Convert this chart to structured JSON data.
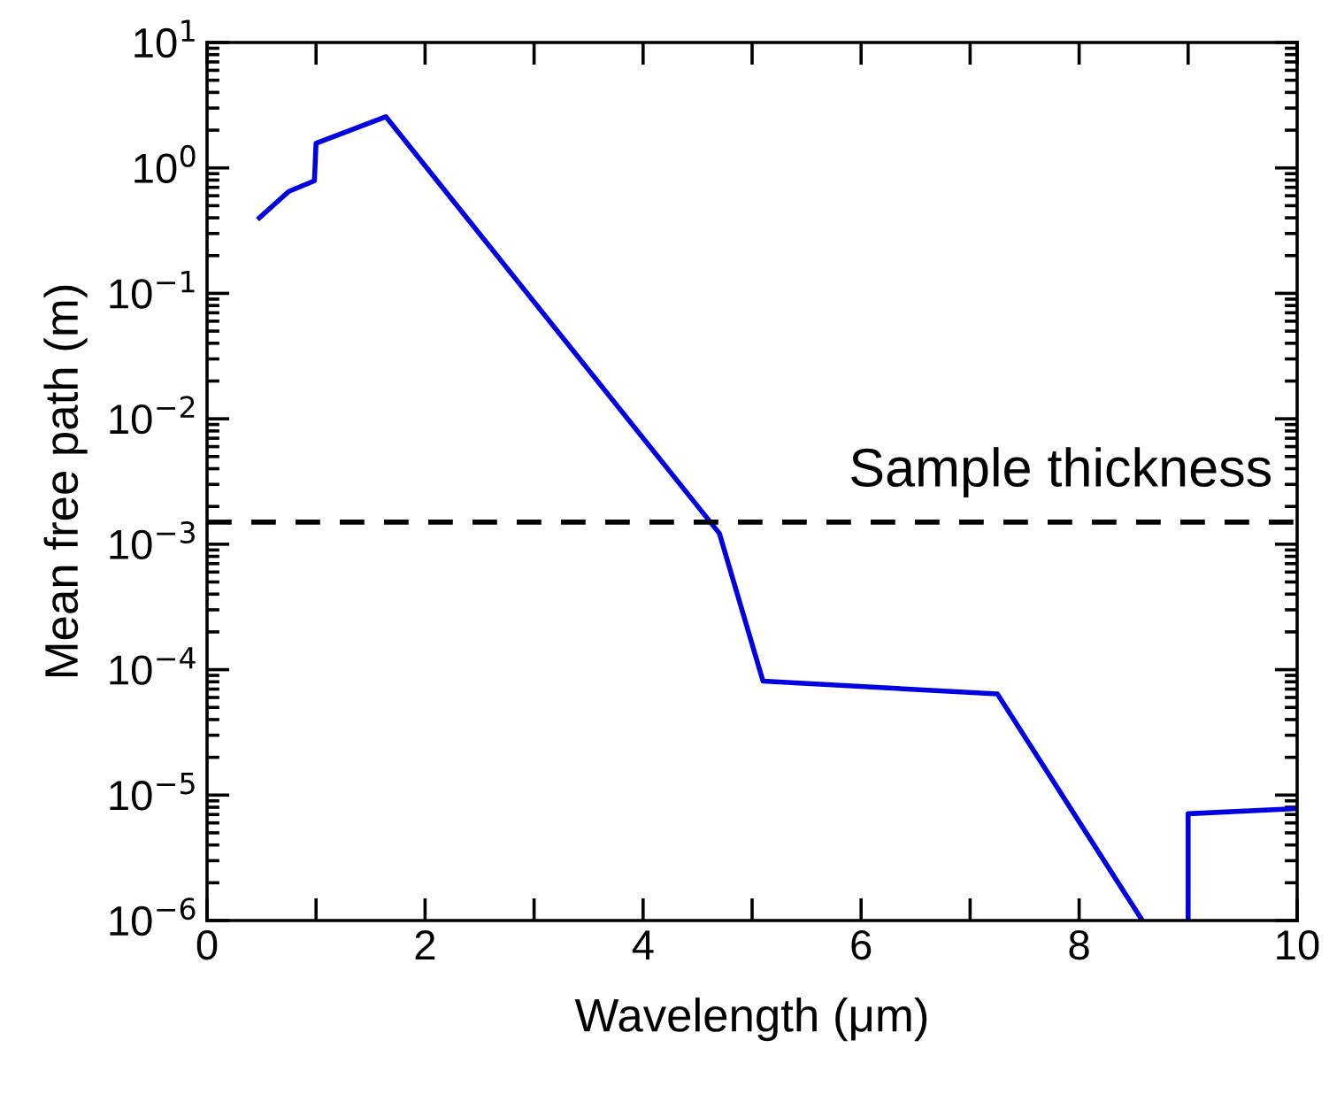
{
  "chart_data": {
    "type": "line",
    "xlabel": "Wavelength (μm)",
    "ylabel": "Mean free path (m)",
    "log": "y",
    "grid": false,
    "marker": "none",
    "line_style": "solid",
    "xlim": [
      0,
      10
    ],
    "ylim": [
      1e-06,
      10
    ],
    "xticks": [
      0,
      {
        "value": 1,
        "label": null
      },
      2,
      {
        "value": 3,
        "label": null
      },
      4,
      {
        "value": 5,
        "label": null
      },
      6,
      {
        "value": 7,
        "label": null
      },
      8,
      {
        "value": 9,
        "label": null
      },
      10
    ],
    "yticks": [
      {
        "value": 1e-06,
        "label": "10$^{−6}$"
      },
      {
        "value": 1e-05,
        "label": "10$^{−5}$"
      },
      {
        "value": 0.0001,
        "label": "10$^{−4}$"
      },
      {
        "value": 0.001,
        "label": "10$^{−3}$"
      },
      {
        "value": 0.01,
        "label": "10$^{−2}$"
      },
      {
        "value": 0.1,
        "label": "10$^{−1}$"
      },
      {
        "value": 1,
        "label": "10$^{0}$"
      },
      {
        "value": 10,
        "label": "10$^{1}$"
      }
    ],
    "series": [
      {
        "color": "#0000e0",
        "x": [
          0.48,
          0.75,
          0.985,
          1.0,
          1.64,
          4.7,
          5.1,
          7.25,
          8.58,
          null,
          9.0,
          9.0,
          10.0
        ],
        "values": [
          0.4,
          0.65,
          0.79,
          1.57,
          2.56,
          0.00122,
          8.1e-05,
          6.4e-05,
          1e-06,
          null,
          1e-06,
          7.1e-06,
          7.8e-06
        ]
      }
    ],
    "ref_lines": [
      {
        "axis": "y",
        "value": 0.0015,
        "label": "Sample thickness",
        "color": "#000000",
        "line_style": "dashed"
      }
    ]
  }
}
